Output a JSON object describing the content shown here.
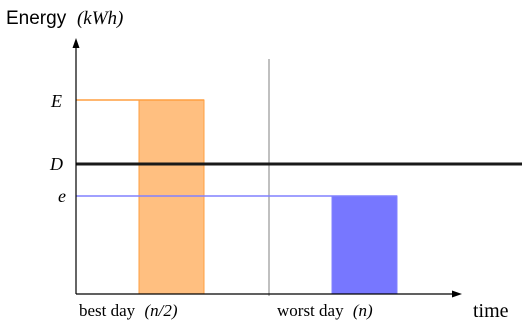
{
  "axis": {
    "y_label_word": "Energy",
    "y_label_unit": "(kWh)",
    "x_label": "time"
  },
  "levels": {
    "high": "E",
    "threshold": "D",
    "low": "e"
  },
  "bars": {
    "best": {
      "label_word": "best day",
      "label_var": "(n/2)"
    },
    "worst": {
      "label_word": "worst day",
      "label_var": "(n)"
    }
  },
  "colors": {
    "best_fill": "#ffbf80",
    "best_line": "#ff9f40",
    "worst_fill": "#7777ff",
    "worst_line": "#8080ff",
    "threshold_line": "#1a1a1a",
    "separator": "#b0b0b0",
    "axis": "#000000"
  }
}
